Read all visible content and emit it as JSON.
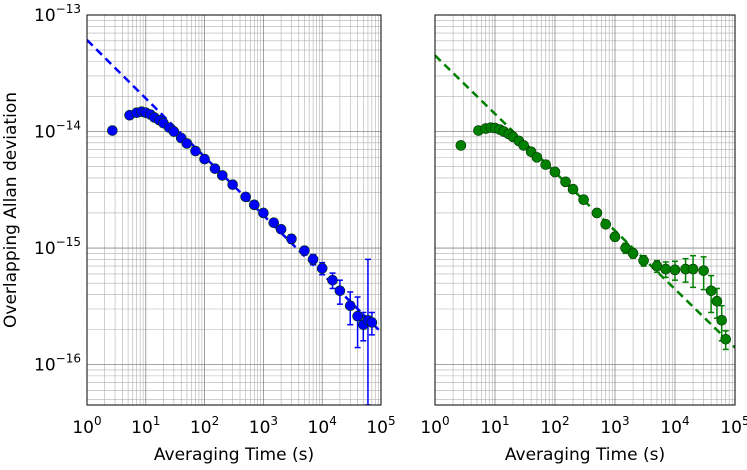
{
  "chart_data": [
    {
      "type": "scatter",
      "xlabel": "Averaging Time (s)",
      "ylabel": "Overlapping Allan deviation",
      "log_x": true,
      "log_y": true,
      "grid": "both",
      "xlim": [
        1,
        100000
      ],
      "ylim": [
        4.5e-17,
        1e-13
      ],
      "xticks": [
        {
          "value": 1,
          "label": "10^0"
        },
        {
          "value": 10,
          "label": "10^1"
        },
        {
          "value": 100,
          "label": "10^2"
        },
        {
          "value": 1000,
          "label": "10^3"
        },
        {
          "value": 10000,
          "label": "10^4"
        },
        {
          "value": 100000,
          "label": "10^5"
        }
      ],
      "yticks": [
        {
          "value": 1e-16,
          "label": "10^-16"
        },
        {
          "value": 1e-15,
          "label": "10^-15"
        },
        {
          "value": 1e-14,
          "label": "10^-14"
        },
        {
          "value": 1e-13,
          "label": "10^-13"
        }
      ],
      "series": [
        {
          "color": "#0000ff",
          "x": [
            2.7,
            5.3,
            7,
            8.5,
            10,
            12,
            14,
            17,
            20,
            25,
            30,
            40,
            50,
            70,
            100,
            150,
            200,
            300,
            500,
            700,
            1000,
            1500,
            2000,
            3000,
            5000,
            7000,
            10000,
            15000,
            20000,
            30000,
            40000,
            50000,
            60000,
            70000
          ],
          "values": [
            1.02e-14,
            1.38e-14,
            1.45e-14,
            1.48e-14,
            1.45e-14,
            1.4e-14,
            1.32e-14,
            1.25e-14,
            1.18e-14,
            1.08e-14,
            1e-14,
            8.8e-15,
            7.9e-15,
            6.8e-15,
            5.8e-15,
            4.8e-15,
            4.2e-15,
            3.5e-15,
            2.75e-15,
            2.35e-15,
            2e-15,
            1.65e-15,
            1.45e-15,
            1.2e-15,
            9.5e-16,
            8e-16,
            6.7e-16,
            5.3e-16,
            4.3e-16,
            3.2e-16,
            2.6e-16,
            2.2e-16,
            2.4e-16,
            2.3e-16
          ],
          "errors": [
            1e-16,
            1e-16,
            1e-16,
            1e-16,
            1e-16,
            1e-16,
            1e-16,
            1e-16,
            1e-16,
            1e-16,
            1e-16,
            1e-16,
            1e-16,
            1e-16,
            1e-16,
            1e-16,
            1e-16,
            1e-16,
            1e-16,
            1e-16,
            1e-16,
            1e-16,
            1e-16,
            1e-16,
            8e-17,
            8e-17,
            8e-17,
            8e-17,
            1e-16,
            1e-16,
            1.2e-16,
            6e-17,
            5.6e-16,
            5e-17
          ]
        }
      ],
      "fit": {
        "color": "#0000ff",
        "x": [
          1,
          100000
        ],
        "values": [
          6.1e-14,
          1.9e-16
        ]
      }
    },
    {
      "type": "scatter",
      "xlabel": "Averaging Time (s)",
      "sharey": true,
      "log_x": true,
      "log_y": true,
      "grid": "both",
      "xlim": [
        1,
        100000
      ],
      "ylim": [
        4.5e-17,
        1e-13
      ],
      "xticks": [
        {
          "value": 1,
          "label": "10^0"
        },
        {
          "value": 10,
          "label": "10^1"
        },
        {
          "value": 100,
          "label": "10^2"
        },
        {
          "value": 1000,
          "label": "10^3"
        },
        {
          "value": 10000,
          "label": "10^4"
        },
        {
          "value": 100000,
          "label": "10^5"
        }
      ],
      "yticks": [
        {
          "value": 1e-16,
          "label": "10^-16"
        },
        {
          "value": 1e-15,
          "label": "10^-15"
        },
        {
          "value": 1e-14,
          "label": "10^-14"
        },
        {
          "value": 1e-13,
          "label": "10^-13"
        }
      ],
      "series": [
        {
          "color": "#008000",
          "x": [
            2.7,
            5.3,
            7,
            8.5,
            10,
            12,
            14,
            17,
            20,
            25,
            30,
            40,
            50,
            70,
            100,
            150,
            200,
            300,
            500,
            700,
            1000,
            1500,
            2000,
            3000,
            5000,
            7000,
            10000,
            15000,
            20000,
            30000,
            40000,
            50000,
            60000,
            70000
          ],
          "values": [
            7.6e-15,
            1.02e-14,
            1.06e-14,
            1.08e-14,
            1.07e-14,
            1.04e-14,
            1e-14,
            9.5e-15,
            9e-15,
            8.3e-15,
            7.6e-15,
            6.7e-15,
            6e-15,
            5.2e-15,
            4.5e-15,
            3.7e-15,
            3.2e-15,
            2.6e-15,
            2e-15,
            1.6e-15,
            1.25e-15,
            1e-15,
            9e-16,
            7.8e-16,
            7e-16,
            6.6e-16,
            6.5e-16,
            6.6e-16,
            6.6e-16,
            6.4e-16,
            4.3e-16,
            3.5e-16,
            2.4e-16,
            1.65e-16
          ],
          "errors": [
            1e-16,
            1e-16,
            1e-16,
            1e-16,
            1e-16,
            1e-16,
            1e-16,
            1e-16,
            1e-16,
            1e-16,
            1e-16,
            1e-16,
            1e-16,
            1e-16,
            1e-16,
            1e-16,
            1e-16,
            1e-16,
            1e-16,
            1e-16,
            1e-16,
            1e-16,
            8e-17,
            8e-17,
            8e-17,
            1e-16,
            1.2e-16,
            1.5e-16,
            2e-16,
            2e-16,
            1.5e-16,
            1e-16,
            8e-17,
            3e-17
          ]
        }
      ],
      "fit": {
        "color": "#008000",
        "x": [
          1,
          100000
        ],
        "values": [
          4.5e-14,
          1.4e-16
        ]
      }
    }
  ]
}
